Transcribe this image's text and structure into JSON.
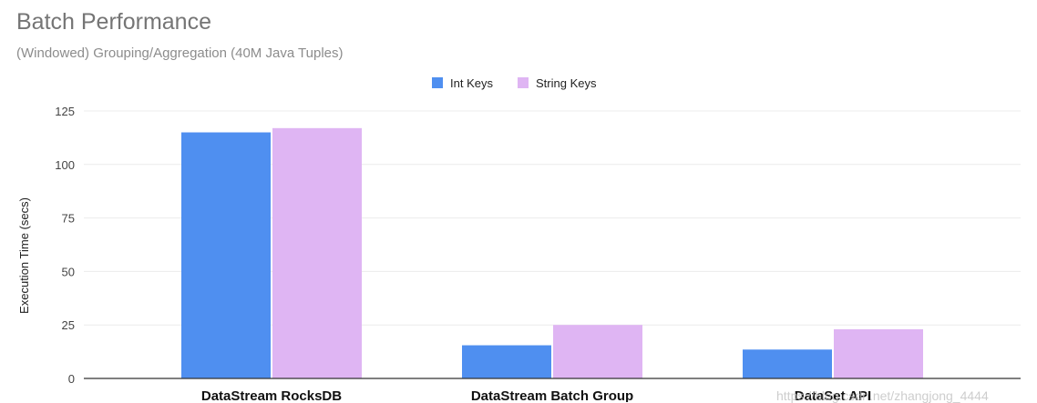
{
  "chart_data": {
    "type": "bar",
    "title": "Batch Performance",
    "subtitle": "(Windowed) Grouping/Aggregation (40M Java Tuples)",
    "xlabel": "",
    "ylabel": "Execution Time (secs)",
    "ylim": [
      0,
      125
    ],
    "yticks": [
      0,
      25,
      50,
      75,
      100,
      125
    ],
    "grid": true,
    "legend_position": "top-center",
    "categories": [
      "DataStream RocksDB",
      "DataStream Batch Group",
      "DataSet API"
    ],
    "series": [
      {
        "name": "Int Keys",
        "color": "#4f8ff0",
        "values": [
          115,
          15.5,
          13.5
        ]
      },
      {
        "name": "String Keys",
        "color": "#dfb5f3",
        "values": [
          117,
          25,
          23
        ]
      }
    ]
  },
  "watermark": "https://blog.csdn.net/zhangjong_4444"
}
